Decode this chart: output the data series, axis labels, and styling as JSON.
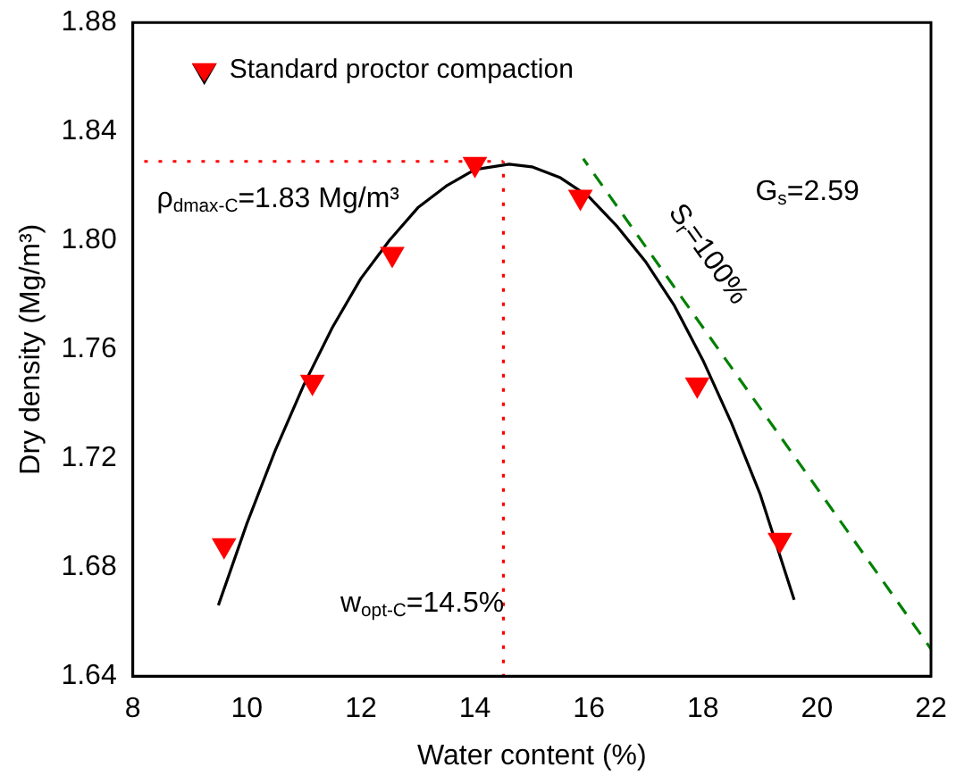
{
  "chart_data": {
    "type": "scatter",
    "xlabel": "Water content (%)",
    "ylabel": "Dry density (Mg/m³)",
    "xlim": [
      8,
      22
    ],
    "xticks": [
      8,
      10,
      12,
      14,
      16,
      18,
      20,
      22
    ],
    "ylim": [
      1.64,
      1.88
    ],
    "yticks": [
      1.64,
      1.68,
      1.72,
      1.76,
      {
        "value": 1.8,
        "label": "1.80"
      },
      1.84,
      1.88
    ],
    "grid": false,
    "legend": "top left",
    "marker": "triangle",
    "series": [
      {
        "name": "Standard proctor compaction",
        "color": "#ff0000",
        "x": [
          9.6,
          11.15,
          12.55,
          14.0,
          15.85,
          17.9,
          19.35
        ],
        "values": [
          1.688,
          1.748,
          1.795,
          1.828,
          1.816,
          1.747,
          1.69
        ]
      },
      {
        "type": "line",
        "color": "#000000",
        "marker": "none",
        "line_style": "solid",
        "x": [
          9.5,
          10,
          10.5,
          11,
          11.5,
          12,
          12.5,
          13,
          13.5,
          14,
          14.6,
          15,
          15.5,
          16,
          16.5,
          17,
          17.5,
          18,
          18.5,
          19,
          19.6
        ],
        "values": [
          1.666,
          1.696,
          1.723,
          1.747,
          1.768,
          1.786,
          1.8,
          1.812,
          1.82,
          1.826,
          1.828,
          1.827,
          1.823,
          1.816,
          1.805,
          1.792,
          1.776,
          1.756,
          1.733,
          1.707,
          1.668
        ]
      },
      {
        "type": "line",
        "color": "#008000",
        "marker": "none",
        "line_style": "dashed",
        "x": [
          15.9,
          22
        ],
        "values": [
          1.83,
          1.65
        ]
      },
      {
        "type": "line",
        "color": "#ff0000",
        "marker": "none",
        "line_style": "dotted",
        "x": [
          8,
          14.5
        ],
        "values": [
          1.829,
          1.829
        ]
      },
      {
        "type": "line",
        "color": "#ff0000",
        "marker": "none",
        "line_style": "dotted",
        "x": [
          14.5,
          14.5
        ],
        "values": [
          1.64,
          1.829
        ]
      }
    ],
    "annotations": [
      "ρ$_{dmax-C}$=1.83 Mg/m³",
      "G$_{s}$=2.59",
      "S$_{r}$=100%",
      "w$_{opt-C}$=14.5%"
    ]
  }
}
